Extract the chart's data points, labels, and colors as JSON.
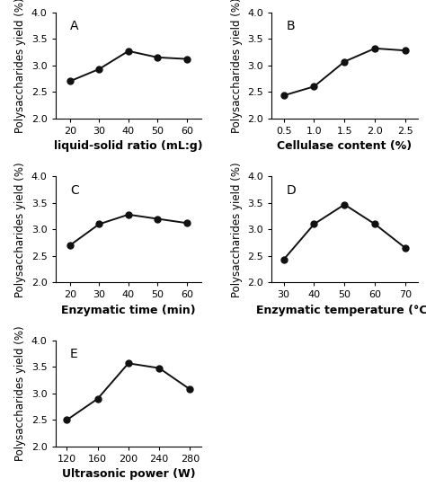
{
  "A": {
    "x": [
      20,
      30,
      40,
      50,
      60
    ],
    "y": [
      2.7,
      2.93,
      3.27,
      3.15,
      3.12
    ],
    "xlabel": "liquid-solid ratio (mL:g)",
    "ylabel": "Polysaccharides yield (%)",
    "label": "A",
    "xlim": [
      15,
      65
    ],
    "xticks": [
      20,
      30,
      40,
      50,
      60
    ],
    "ylim": [
      2.0,
      4.0
    ],
    "yticks": [
      2.0,
      2.5,
      3.0,
      3.5,
      4.0
    ]
  },
  "B": {
    "x": [
      0.5,
      1.0,
      1.5,
      2.0,
      2.5
    ],
    "y": [
      2.43,
      2.6,
      3.07,
      3.32,
      3.28
    ],
    "xlabel": "Cellulase content (%)",
    "ylabel": "Polysaccharides yield (%)",
    "label": "B",
    "xlim": [
      0.3,
      2.7
    ],
    "xticks": [
      0.5,
      1.0,
      1.5,
      2.0,
      2.5
    ],
    "ylim": [
      2.0,
      4.0
    ],
    "yticks": [
      2.0,
      2.5,
      3.0,
      3.5,
      4.0
    ]
  },
  "C": {
    "x": [
      20,
      30,
      40,
      50,
      60
    ],
    "y": [
      2.7,
      3.1,
      3.28,
      3.2,
      3.12
    ],
    "xlabel": "Enzymatic time (min)",
    "ylabel": "Polysaccharides yield (%)",
    "label": "C",
    "xlim": [
      15,
      65
    ],
    "xticks": [
      20,
      30,
      40,
      50,
      60
    ],
    "ylim": [
      2.0,
      4.0
    ],
    "yticks": [
      2.0,
      2.5,
      3.0,
      3.5,
      4.0
    ]
  },
  "D": {
    "x": [
      30,
      40,
      50,
      60,
      70
    ],
    "y": [
      2.43,
      3.1,
      3.47,
      3.1,
      2.65
    ],
    "xlabel": "Enzymatic temperature (°C)",
    "ylabel": "Polysaccharides yield (%)",
    "label": "D",
    "xlim": [
      26,
      74
    ],
    "xticks": [
      30,
      40,
      50,
      60,
      70
    ],
    "ylim": [
      2.0,
      4.0
    ],
    "yticks": [
      2.0,
      2.5,
      3.0,
      3.5,
      4.0
    ]
  },
  "E": {
    "x": [
      120,
      160,
      200,
      240,
      280
    ],
    "y": [
      2.5,
      2.9,
      3.57,
      3.48,
      3.08
    ],
    "xlabel": "Ultrasonic power (W)",
    "ylabel": "Polysaccharides yield (%)",
    "label": "E",
    "xlim": [
      105,
      295
    ],
    "xticks": [
      120,
      160,
      200,
      240,
      280
    ],
    "ylim": [
      2.0,
      4.0
    ],
    "yticks": [
      2.0,
      2.5,
      3.0,
      3.5,
      4.0
    ]
  },
  "marker": "o",
  "markersize": 5,
  "markerfacecolor": "#111111",
  "linecolor": "#111111",
  "linewidth": 1.4,
  "ylabel_fontsize": 8.5,
  "xlabel_fontsize": 9,
  "tick_fontsize": 8,
  "panel_label_fontsize": 10,
  "xlabel_fontweight": "bold",
  "background_color": "#ffffff"
}
